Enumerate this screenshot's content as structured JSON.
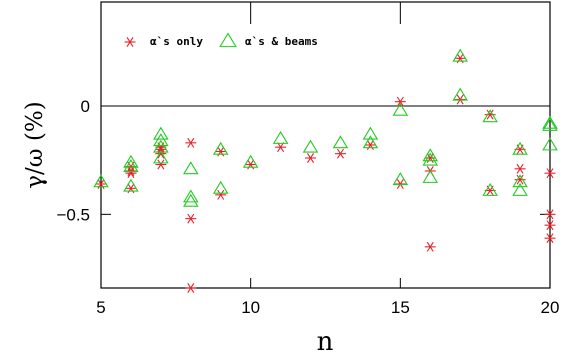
{
  "chart_data": {
    "type": "scatter",
    "xlabel": "n",
    "ylabel": "γ/ω (%)",
    "xlim": [
      5,
      20
    ],
    "ylim": [
      -0.84,
      0.48
    ],
    "x_ticks": [
      5,
      10,
      15,
      20
    ],
    "x_tick_labels": [
      "5",
      "10",
      "15",
      "20"
    ],
    "y_ticks": [
      0,
      -0.5
    ],
    "y_tick_labels": [
      "0",
      "−0.5"
    ],
    "zero_line": true,
    "grid": false,
    "legend_position": "top-left",
    "series": [
      {
        "name": "α`s only",
        "marker": "asterisk",
        "color": "#e8202a",
        "points": [
          [
            5,
            -0.36
          ],
          [
            6,
            -0.28
          ],
          [
            6,
            -0.3
          ],
          [
            6,
            -0.31
          ],
          [
            6,
            -0.38
          ],
          [
            7,
            -0.19
          ],
          [
            7,
            -0.2
          ],
          [
            7,
            -0.22
          ],
          [
            7,
            -0.27
          ],
          [
            8,
            -0.17
          ],
          [
            8,
            -0.52
          ],
          [
            8,
            -0.84
          ],
          [
            9,
            -0.21
          ],
          [
            9,
            -0.41
          ],
          [
            10,
            -0.27
          ],
          [
            11,
            -0.19
          ],
          [
            12,
            -0.24
          ],
          [
            13,
            -0.22
          ],
          [
            14,
            -0.18
          ],
          [
            15,
            0.02
          ],
          [
            15,
            -0.36
          ],
          [
            16,
            -0.24
          ],
          [
            16,
            -0.3
          ],
          [
            16,
            -0.65
          ],
          [
            17,
            0.22
          ],
          [
            17,
            0.03
          ],
          [
            18,
            -0.04
          ],
          [
            18,
            -0.39
          ],
          [
            19,
            -0.2
          ],
          [
            19,
            -0.29
          ],
          [
            19,
            -0.34
          ],
          [
            20,
            -0.31
          ],
          [
            20,
            -0.5
          ],
          [
            20,
            -0.55
          ],
          [
            20,
            -0.61
          ]
        ]
      },
      {
        "name": "α`s & beams",
        "marker": "triangle",
        "color": "#22cc22",
        "points": [
          [
            5,
            -0.35
          ],
          [
            6,
            -0.26
          ],
          [
            6,
            -0.28
          ],
          [
            6,
            -0.37
          ],
          [
            7,
            -0.13
          ],
          [
            7,
            -0.16
          ],
          [
            7,
            -0.19
          ],
          [
            7,
            -0.24
          ],
          [
            8,
            -0.29
          ],
          [
            8,
            -0.42
          ],
          [
            8,
            -0.44
          ],
          [
            9,
            -0.2
          ],
          [
            9,
            -0.38
          ],
          [
            10,
            -0.26
          ],
          [
            11,
            -0.15
          ],
          [
            12,
            -0.19
          ],
          [
            13,
            -0.17
          ],
          [
            14,
            -0.13
          ],
          [
            14,
            -0.17
          ],
          [
            15,
            -0.02
          ],
          [
            15,
            -0.34
          ],
          [
            16,
            -0.23
          ],
          [
            16,
            -0.25
          ],
          [
            16,
            -0.33
          ],
          [
            17,
            0.23
          ],
          [
            17,
            0.05
          ],
          [
            18,
            -0.05
          ],
          [
            18,
            -0.39
          ],
          [
            19,
            -0.2
          ],
          [
            19,
            -0.35
          ],
          [
            19,
            -0.39
          ],
          [
            20,
            -0.08
          ],
          [
            20,
            -0.09
          ],
          [
            20,
            -0.18
          ]
        ]
      }
    ]
  }
}
